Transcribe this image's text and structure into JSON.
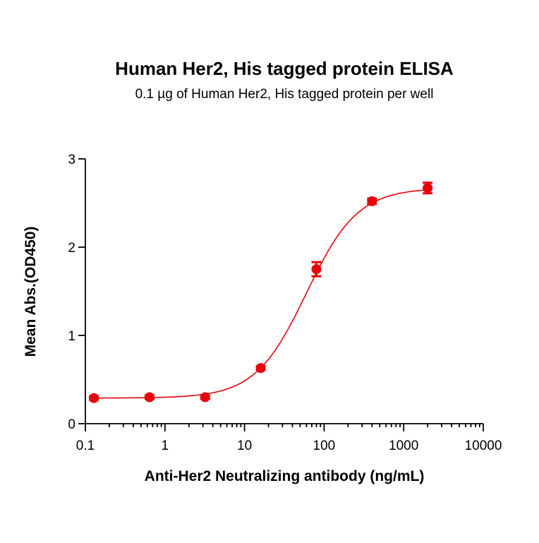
{
  "chart_data": {
    "type": "scatter",
    "title": "Human Her2, His tagged protein ELISA",
    "subtitle": "0.1 µg of Human Her2, His tagged protein per well",
    "xlabel": "Anti-Her2 Neutralizing antibody (ng/mL)",
    "ylabel": "Mean Abs.(OD450)",
    "x_scale": "log",
    "xlim": [
      0.1,
      10000
    ],
    "ylim": [
      0,
      3
    ],
    "x_ticks": [
      0.1,
      1,
      10,
      100,
      1000,
      10000
    ],
    "x_tick_labels": [
      "0.1",
      "1",
      "10",
      "100",
      "1000",
      "10000"
    ],
    "y_ticks": [
      0,
      1,
      2,
      3
    ],
    "y_tick_labels": [
      "0",
      "1",
      "2",
      "3"
    ],
    "grid": false,
    "color": "#e8000b",
    "series": [
      {
        "x": [
          0.128,
          0.64,
          3.2,
          16,
          80,
          400,
          2000
        ],
        "y": [
          0.29,
          0.3,
          0.3,
          0.63,
          1.75,
          2.52,
          2.67
        ],
        "error": [
          0.02,
          0.02,
          0.02,
          0.02,
          0.08,
          0.03,
          0.06
        ],
        "fit": {
          "model": "4PL",
          "bottom": 0.29,
          "top": 2.67,
          "ec50": 60,
          "hill": 1.35
        }
      }
    ]
  }
}
